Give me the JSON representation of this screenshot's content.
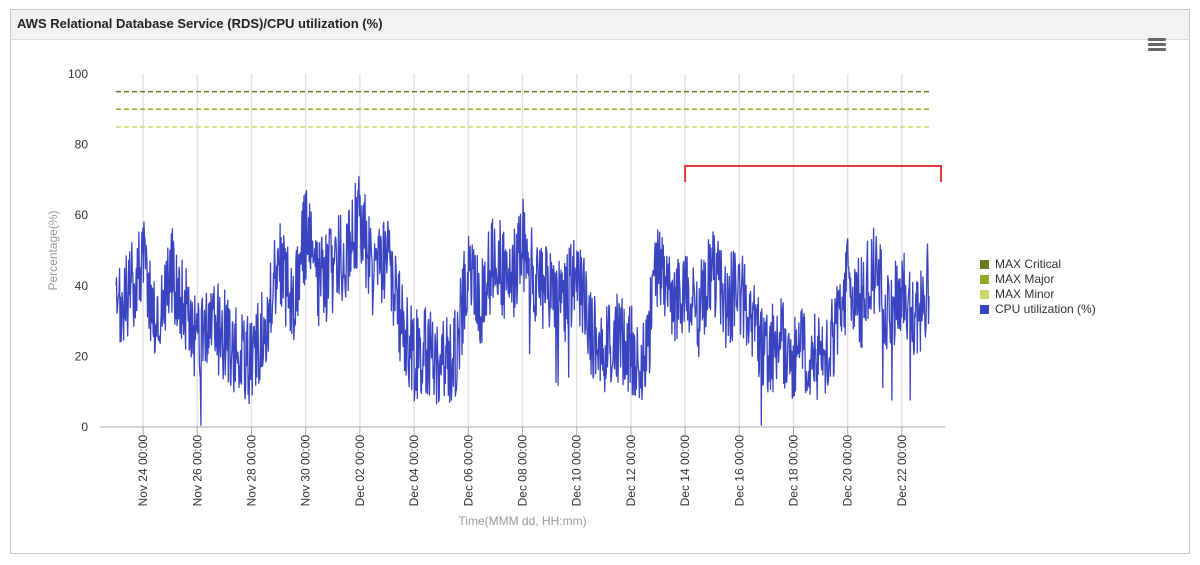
{
  "panel": {
    "title": "AWS Relational Database Service (RDS)/CPU utilization (%)",
    "menu_icon": "hamburger-menu-icon"
  },
  "chart_data": {
    "type": "line",
    "xlabel": "Time(MMM dd, HH:mm)",
    "ylabel": "Percentage(%)",
    "ylim": [
      0,
      100
    ],
    "yticks": [
      0,
      20,
      40,
      60,
      80,
      100
    ],
    "x_range": [
      "Nov 23 00:00",
      "Dec 23 00:00"
    ],
    "xticks": [
      "Nov 24 00:00",
      "Nov 26 00:00",
      "Nov 28 00:00",
      "Nov 30 00:00",
      "Dec 02 00:00",
      "Dec 04 00:00",
      "Dec 06 00:00",
      "Dec 08 00:00",
      "Dec 10 00:00",
      "Dec 12 00:00",
      "Dec 14 00:00",
      "Dec 16 00:00",
      "Dec 18 00:00",
      "Dec 20 00:00",
      "Dec 22 00:00"
    ],
    "grid": "vertical",
    "legend_position": "right",
    "thresholds": [
      {
        "name": "MAX Critical",
        "value": 95,
        "color": "#6b7a1f"
      },
      {
        "name": "MAX Major",
        "value": 90,
        "color": "#9aa82a"
      },
      {
        "name": "MAX Minor",
        "value": 85,
        "color": "#cdd66a"
      }
    ],
    "series": [
      {
        "name": "CPU utilization (%)",
        "color": "#3a44c0",
        "x": [
          "Nov 23 00:00",
          "Nov 23 12:00",
          "Nov 24 00:00",
          "Nov 24 12:00",
          "Nov 25 00:00",
          "Nov 25 12:00",
          "Nov 26 00:00",
          "Nov 26 12:00",
          "Nov 27 00:00",
          "Nov 27 12:00",
          "Nov 28 00:00",
          "Nov 28 12:00",
          "Nov 29 00:00",
          "Nov 29 12:00",
          "Nov 30 00:00",
          "Nov 30 12:00",
          "Dec 01 00:00",
          "Dec 01 12:00",
          "Dec 02 00:00",
          "Dec 02 12:00",
          "Dec 03 00:00",
          "Dec 03 12:00",
          "Dec 04 00:00",
          "Dec 04 12:00",
          "Dec 05 00:00",
          "Dec 05 12:00",
          "Dec 06 00:00",
          "Dec 06 12:00",
          "Dec 07 00:00",
          "Dec 07 12:00",
          "Dec 08 00:00",
          "Dec 08 12:00",
          "Dec 09 00:00",
          "Dec 09 12:00",
          "Dec 10 00:00",
          "Dec 10 12:00",
          "Dec 11 00:00",
          "Dec 11 12:00",
          "Dec 12 00:00",
          "Dec 12 12:00",
          "Dec 13 00:00",
          "Dec 13 12:00",
          "Dec 14 00:00",
          "Dec 14 12:00",
          "Dec 15 00:00",
          "Dec 15 12:00",
          "Dec 16 00:00",
          "Dec 16 12:00",
          "Dec 17 00:00",
          "Dec 17 12:00",
          "Dec 18 00:00",
          "Dec 18 12:00",
          "Dec 19 00:00",
          "Dec 19 12:00",
          "Dec 20 00:00",
          "Dec 20 12:00",
          "Dec 21 00:00",
          "Dec 21 12:00",
          "Dec 22 00:00",
          "Dec 22 12:00",
          "Dec 23 00:00"
        ],
        "values": [
          30,
          38,
          48,
          28,
          45,
          35,
          22,
          30,
          26,
          20,
          18,
          28,
          48,
          35,
          55,
          40,
          45,
          50,
          60,
          42,
          50,
          30,
          20,
          22,
          18,
          20,
          45,
          35,
          50,
          38,
          52,
          40,
          40,
          35,
          45,
          28,
          20,
          25,
          22,
          18,
          45,
          35,
          40,
          32,
          45,
          35,
          40,
          30,
          20,
          25,
          18,
          22,
          20,
          25,
          42,
          35,
          45,
          30,
          40,
          28,
          42
        ]
      }
    ]
  }
}
